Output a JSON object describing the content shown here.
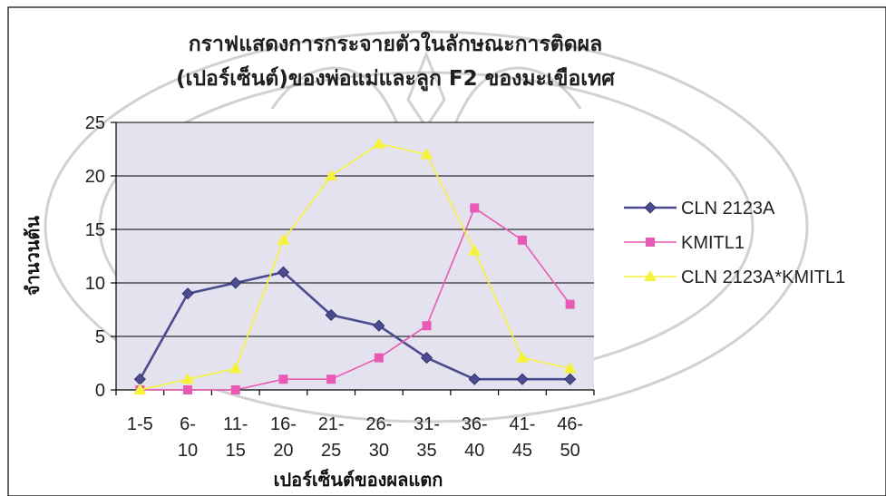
{
  "chart_data": {
    "type": "line",
    "title_lines": [
      "กราฟแสดงการกระจายตัวในลักษณะการติดผล",
      "(เปอร์เซ็นต์)ของพ่อแม่และลูก F2 ของมะเขือเทศ"
    ],
    "xlabel": "เปอร์เซ็นต์ของผลแตก",
    "ylabel": "จำนวนต้น",
    "categories": [
      [
        "1-5"
      ],
      [
        "6-",
        "10"
      ],
      [
        "11-",
        "15"
      ],
      [
        "16-",
        "20"
      ],
      [
        "21-",
        "25"
      ],
      [
        "26-",
        "30"
      ],
      [
        "31-",
        "35"
      ],
      [
        "36-",
        "40"
      ],
      [
        "41-",
        "45"
      ],
      [
        "46-",
        "50"
      ]
    ],
    "ylim": [
      0,
      25
    ],
    "yticks": [
      "0",
      "5",
      "10",
      "15",
      "20",
      "25"
    ],
    "grid": true,
    "legend_position": "right",
    "series": [
      {
        "name": "CLN 2123A",
        "color": "#4b4b8f",
        "marker": "diamond",
        "values": [
          1,
          9,
          10,
          11,
          7,
          6,
          3,
          1,
          1,
          1
        ]
      },
      {
        "name": "KMITL1",
        "color": "#e85ab4",
        "marker": "square",
        "values": [
          0,
          0,
          0,
          1,
          1,
          3,
          6,
          17,
          14,
          8
        ]
      },
      {
        "name": "CLN 2123A*KMITL1",
        "color": "#f5f23a",
        "marker": "triangle",
        "values": [
          0,
          1,
          2,
          14,
          20,
          23,
          22,
          13,
          3,
          2
        ]
      }
    ]
  }
}
